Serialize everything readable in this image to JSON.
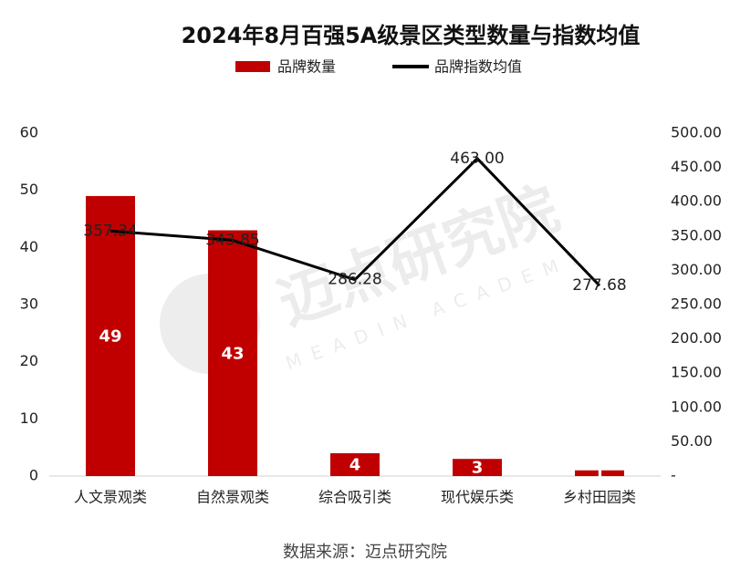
{
  "chart_data": {
    "type": "bar",
    "title": "2024年8月百强5A级景区类型数量与指数均值",
    "categories": [
      "人文景观类",
      "自然景观类",
      "综合吸引类",
      "现代娱乐类",
      "乡村田园类"
    ],
    "series": [
      {
        "name": "品牌数量",
        "color": "#c00000",
        "type": "bar",
        "values": [
          49,
          43,
          4,
          3,
          1
        ]
      },
      {
        "name": "品牌指数均值",
        "color": "#000000",
        "type": "line",
        "axis": "y2",
        "values": [
          357.34,
          343.85,
          286.28,
          463.0,
          277.68
        ],
        "value_labels": [
          "357.34",
          "343.85",
          "286.28",
          "463.00",
          "277.68"
        ]
      }
    ],
    "ylim": [
      0,
      60
    ],
    "yticks": [
      0,
      10,
      20,
      30,
      40,
      50,
      60
    ],
    "y2lim": [
      0,
      500
    ],
    "y2ticks": [
      {
        "value": 0,
        "label": "-"
      },
      {
        "value": 50,
        "label": "50.00"
      },
      {
        "value": 100,
        "label": "100.00"
      },
      {
        "value": 150,
        "label": "150.00"
      },
      {
        "value": 200,
        "label": "200.00"
      },
      {
        "value": 250,
        "label": "250.00"
      },
      {
        "value": 300,
        "label": "300.00"
      },
      {
        "value": 350,
        "label": "350.00"
      },
      {
        "value": 400,
        "label": "400.00"
      },
      {
        "value": 450,
        "label": "450.00"
      },
      {
        "value": 500,
        "label": "500.00"
      }
    ],
    "legend": "top",
    "watermark": "迈点研究院",
    "watermark_sub": "MEADIN ACADEMY",
    "source": "数据来源：迈点研究院"
  }
}
